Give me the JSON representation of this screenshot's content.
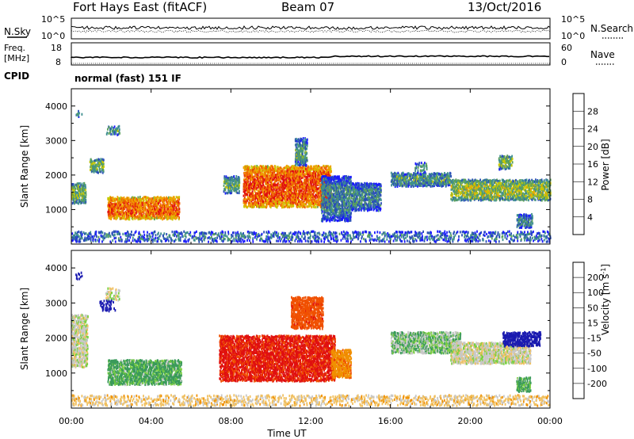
{
  "header": {
    "title": "Fort Hays East (fitACF)",
    "beam": "Beam 07",
    "date": "13/Oct/2016"
  },
  "noise_panel": {
    "left_label": "N.Sky",
    "right_label": "N.Search",
    "left_ticks": [
      "10^5",
      "10^0"
    ],
    "right_ticks": [
      "10^5",
      "10^0"
    ]
  },
  "freq_panel": {
    "left_label_line1": "Freq.",
    "left_label_line2": "[MHz]",
    "right_label": "Nave",
    "left_ticks": [
      "18",
      "8"
    ],
    "right_ticks": [
      "60",
      "0"
    ]
  },
  "cpid": {
    "label": "CPID",
    "text": "normal (fast) 151 IF"
  },
  "chart_data": [
    {
      "type": "heatmap",
      "panel": "power",
      "ylabel": "Slant Range [km]",
      "ylim": [
        0,
        4500
      ],
      "yticks": [
        "1000",
        "2000",
        "3000",
        "4000"
      ],
      "xlim_hours": [
        0,
        24
      ],
      "colorbar": {
        "label": "Power [dB]",
        "ticks": [
          "4",
          "8",
          "12",
          "16",
          "20",
          "24",
          "28"
        ],
        "range": [
          0,
          30
        ],
        "colors": [
          "#1a1aff",
          "#2a4fb8",
          "#3f8f8f",
          "#5aa05a",
          "#c8c800",
          "#f0a000",
          "#f06000",
          "#e01010"
        ]
      },
      "regions": [
        {
          "t0": 0.0,
          "t1": 0.7,
          "r0": 1200,
          "r1": 1800,
          "level": 0.45
        },
        {
          "t0": 0.2,
          "t1": 0.5,
          "r0": 3700,
          "r1": 3900,
          "level": 0.3
        },
        {
          "t0": 0.9,
          "t1": 1.6,
          "r0": 2100,
          "r1": 2500,
          "level": 0.45
        },
        {
          "t0": 1.7,
          "t1": 2.4,
          "r0": 3200,
          "r1": 3450,
          "level": 0.35
        },
        {
          "t0": 1.8,
          "t1": 5.4,
          "r0": 750,
          "r1": 1400,
          "level": 0.8
        },
        {
          "t0": 7.6,
          "t1": 8.4,
          "r0": 1500,
          "r1": 2000,
          "level": 0.4
        },
        {
          "t0": 8.6,
          "t1": 13.0,
          "r0": 1100,
          "r1": 2300,
          "level": 0.85
        },
        {
          "t0": 11.2,
          "t1": 11.8,
          "r0": 2300,
          "r1": 3100,
          "level": 0.35
        },
        {
          "t0": 12.5,
          "t1": 14.0,
          "r0": 700,
          "r1": 2000,
          "level": 0.3
        },
        {
          "t0": 14.0,
          "t1": 15.5,
          "r0": 1000,
          "r1": 1800,
          "level": 0.3
        },
        {
          "t0": 16.0,
          "t1": 19.0,
          "r0": 1700,
          "r1": 2100,
          "level": 0.35
        },
        {
          "t0": 17.2,
          "t1": 17.8,
          "r0": 2100,
          "r1": 2400,
          "level": 0.3
        },
        {
          "t0": 19.0,
          "t1": 24.0,
          "r0": 1300,
          "r1": 1900,
          "level": 0.5
        },
        {
          "t0": 21.4,
          "t1": 22.1,
          "r0": 2200,
          "r1": 2600,
          "level": 0.45
        },
        {
          "t0": 22.3,
          "t1": 23.1,
          "r0": 500,
          "r1": 900,
          "level": 0.3
        },
        {
          "t0": 0.0,
          "t1": 24.0,
          "r0": 100,
          "r1": 400,
          "level": 0.25
        }
      ]
    },
    {
      "type": "heatmap",
      "panel": "velocity",
      "ylabel": "Slant Range [km]",
      "xlabel": "Time UT",
      "ylim": [
        0,
        4500
      ],
      "yticks": [
        "1000",
        "2000",
        "3000",
        "4000"
      ],
      "xticks": [
        "00:00",
        "04:00",
        "08:00",
        "12:00",
        "16:00",
        "20:00",
        "00:00"
      ],
      "xlim_hours": [
        0,
        24
      ],
      "colorbar": {
        "label": "Velocity [m s^-1]",
        "ticks": [
          "200",
          "100",
          "50",
          "15",
          "-15",
          "-50",
          "-100",
          "-200"
        ],
        "range": [
          -250,
          250
        ],
        "colors": [
          "#1a1ab0",
          "#2a6fa0",
          "#3a9a5a",
          "#7ad040",
          "#c8c8c8",
          "#f0c060",
          "#f09000",
          "#f05000",
          "#e01010"
        ]
      },
      "regions": [
        {
          "t0": 0.0,
          "t1": 0.8,
          "r0": 1200,
          "r1": 2700,
          "vel": 0
        },
        {
          "t0": 0.2,
          "t1": 0.5,
          "r0": 3700,
          "r1": 3900,
          "vel": 200
        },
        {
          "t0": 1.7,
          "t1": 2.4,
          "r0": 3100,
          "r1": 3450,
          "vel": 0
        },
        {
          "t0": 1.4,
          "t1": 2.2,
          "r0": 2800,
          "r1": 3100,
          "vel": 180
        },
        {
          "t0": 1.8,
          "t1": 5.5,
          "r0": 700,
          "r1": 1400,
          "vel": 40
        },
        {
          "t0": 7.4,
          "t1": 13.2,
          "r0": 800,
          "r1": 2100,
          "vel": -190
        },
        {
          "t0": 11.0,
          "t1": 12.6,
          "r0": 2300,
          "r1": 3200,
          "vel": -150
        },
        {
          "t0": 13.0,
          "t1": 14.0,
          "r0": 900,
          "r1": 1700,
          "vel": -80
        },
        {
          "t0": 16.0,
          "t1": 19.5,
          "r0": 1600,
          "r1": 2200,
          "vel": 20
        },
        {
          "t0": 19.0,
          "t1": 23.0,
          "r0": 1300,
          "r1": 1900,
          "vel": 0
        },
        {
          "t0": 21.6,
          "t1": 23.5,
          "r0": 1800,
          "r1": 2200,
          "vel": 200
        },
        {
          "t0": 22.3,
          "t1": 23.0,
          "r0": 500,
          "r1": 900,
          "vel": 40
        },
        {
          "t0": 0.0,
          "t1": 24.0,
          "r0": 100,
          "r1": 400,
          "vel": -30
        }
      ]
    }
  ]
}
